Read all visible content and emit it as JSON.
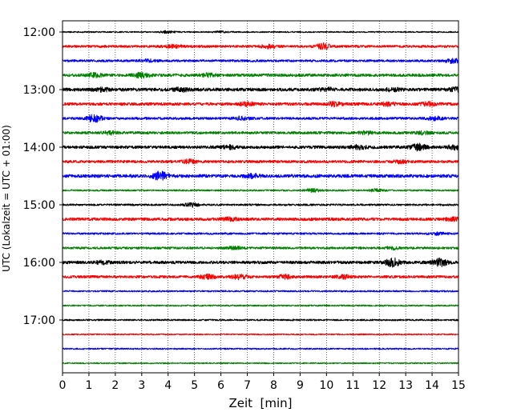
{
  "chart_data": {
    "type": "line",
    "title": "",
    "xlabel": "Zeit  [min]",
    "ylabel": "UTC (Lokalzeit = UTC + 01:00)",
    "xlim": [
      0,
      15
    ],
    "x_ticks": [
      "0",
      "1",
      "2",
      "3",
      "4",
      "5",
      "6",
      "7",
      "8",
      "9",
      "10",
      "11",
      "12",
      "13",
      "14",
      "15"
    ],
    "y_ticks": [
      "12:00",
      "13:00",
      "14:00",
      "15:00",
      "16:00",
      "17:00"
    ],
    "vertical_grid": "dotted",
    "trace_interval_min": 15,
    "color_cycle": [
      "#000000",
      "#ff0000",
      "#0000ff",
      "#008000"
    ],
    "traces": [
      {
        "start": "12:00",
        "level": 0.8,
        "bursts": [
          [
            4.0,
            1.3
          ],
          [
            6.0,
            0.8
          ]
        ]
      },
      {
        "start": "12:15",
        "level": 1.5,
        "bursts": [
          [
            4.2,
            2.0
          ],
          [
            7.8,
            1.8
          ],
          [
            9.9,
            3.0
          ]
        ]
      },
      {
        "start": "12:30",
        "level": 1.4,
        "bursts": [
          [
            3.2,
            1.5
          ],
          [
            14.8,
            2.5
          ]
        ]
      },
      {
        "start": "12:45",
        "level": 1.8,
        "bursts": [
          [
            1.2,
            2.0
          ],
          [
            3.0,
            2.5
          ],
          [
            5.5,
            1.5
          ]
        ]
      },
      {
        "start": "13:00",
        "level": 2.0,
        "bursts": [
          [
            1.5,
            1.5
          ],
          [
            4.5,
            1.8
          ],
          [
            10.0,
            1.8
          ],
          [
            12.5,
            1.5
          ],
          [
            14.9,
            2.0
          ]
        ]
      },
      {
        "start": "13:15",
        "level": 1.8,
        "bursts": [
          [
            7.0,
            1.8
          ],
          [
            10.3,
            2.2
          ],
          [
            12.3,
            1.5
          ],
          [
            13.9,
            1.8
          ]
        ]
      },
      {
        "start": "13:30",
        "level": 1.5,
        "bursts": [
          [
            1.2,
            4.5
          ],
          [
            6.8,
            1.8
          ],
          [
            14.1,
            2.0
          ]
        ]
      },
      {
        "start": "13:45",
        "level": 1.6,
        "bursts": [
          [
            1.8,
            1.8
          ],
          [
            11.5,
            1.6
          ],
          [
            13.7,
            1.5
          ]
        ]
      },
      {
        "start": "14:00",
        "level": 1.8,
        "bursts": [
          [
            6.3,
            1.8
          ],
          [
            11.2,
            2.2
          ],
          [
            13.5,
            4.0
          ],
          [
            14.9,
            3.0
          ]
        ]
      },
      {
        "start": "14:15",
        "level": 1.6,
        "bursts": [
          [
            4.8,
            2.0
          ],
          [
            12.8,
            1.6
          ]
        ]
      },
      {
        "start": "14:30",
        "level": 2.0,
        "bursts": [
          [
            3.7,
            4.5
          ],
          [
            7.2,
            1.8
          ]
        ]
      },
      {
        "start": "14:45",
        "level": 1.0,
        "bursts": [
          [
            9.5,
            1.8
          ],
          [
            11.9,
            1.6
          ]
        ]
      },
      {
        "start": "15:00",
        "level": 1.2,
        "bursts": [
          [
            4.9,
            2.0
          ]
        ]
      },
      {
        "start": "15:15",
        "level": 1.8,
        "bursts": [
          [
            6.3,
            1.5
          ],
          [
            14.8,
            1.5
          ]
        ]
      },
      {
        "start": "15:30",
        "level": 1.2,
        "bursts": [
          [
            14.2,
            1.5
          ]
        ]
      },
      {
        "start": "15:45",
        "level": 1.4,
        "bursts": [
          [
            6.5,
            1.5
          ],
          [
            12.5,
            1.2
          ]
        ]
      },
      {
        "start": "16:00",
        "level": 1.8,
        "bursts": [
          [
            1.5,
            1.5
          ],
          [
            12.5,
            4.5
          ],
          [
            14.3,
            4.0
          ]
        ]
      },
      {
        "start": "16:15",
        "level": 1.6,
        "bursts": [
          [
            5.5,
            2.2
          ],
          [
            6.7,
            2.5
          ],
          [
            8.4,
            2.2
          ],
          [
            10.6,
            2.0
          ]
        ]
      },
      {
        "start": "16:30",
        "level": 1.0,
        "bursts": []
      },
      {
        "start": "16:45",
        "level": 0.9,
        "bursts": []
      },
      {
        "start": "17:00",
        "level": 1.0,
        "bursts": []
      },
      {
        "start": "17:15",
        "level": 0.8,
        "bursts": []
      },
      {
        "start": "17:30",
        "level": 0.9,
        "bursts": []
      },
      {
        "start": "17:45",
        "level": 0.8,
        "bursts": []
      }
    ]
  }
}
